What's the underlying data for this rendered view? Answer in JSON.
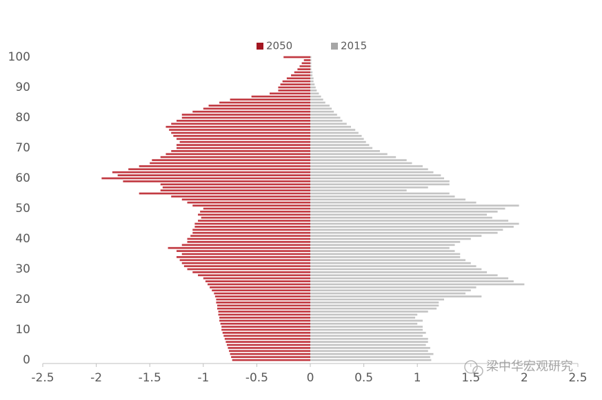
{
  "chart_data": {
    "type": "pyramid",
    "categories": [
      0,
      1,
      2,
      3,
      4,
      5,
      6,
      7,
      8,
      9,
      10,
      11,
      12,
      13,
      14,
      15,
      16,
      17,
      18,
      19,
      20,
      21,
      22,
      23,
      24,
      25,
      26,
      27,
      28,
      29,
      30,
      31,
      32,
      33,
      34,
      35,
      36,
      37,
      38,
      39,
      40,
      41,
      42,
      43,
      44,
      45,
      46,
      47,
      48,
      49,
      50,
      51,
      52,
      53,
      54,
      55,
      56,
      57,
      58,
      59,
      60,
      61,
      62,
      63,
      64,
      65,
      66,
      67,
      68,
      69,
      70,
      71,
      72,
      73,
      74,
      75,
      76,
      77,
      78,
      79,
      80,
      81,
      82,
      83,
      84,
      85,
      86,
      87,
      88,
      89,
      90,
      91,
      92,
      93,
      94,
      95,
      96,
      97,
      98,
      99,
      100
    ],
    "series": [
      {
        "name": "2050",
        "color": "#c23a42",
        "legend_color": "#a31621",
        "values": [
          -0.73,
          -0.74,
          -0.75,
          -0.76,
          -0.77,
          -0.78,
          -0.79,
          -0.8,
          -0.81,
          -0.82,
          -0.83,
          -0.83,
          -0.84,
          -0.85,
          -0.85,
          -0.86,
          -0.86,
          -0.87,
          -0.87,
          -0.88,
          -0.88,
          -0.89,
          -0.9,
          -0.92,
          -0.94,
          -0.96,
          -0.98,
          -1.0,
          -1.05,
          -1.1,
          -1.15,
          -1.18,
          -1.2,
          -1.22,
          -1.25,
          -1.2,
          -1.25,
          -1.33,
          -1.2,
          -1.15,
          -1.15,
          -1.12,
          -1.1,
          -1.1,
          -1.08,
          -1.08,
          -1.05,
          -1.02,
          -1.05,
          -1.03,
          -1.0,
          -1.1,
          -1.15,
          -1.2,
          -1.3,
          -1.6,
          -1.4,
          -1.38,
          -1.4,
          -1.75,
          -1.95,
          -1.8,
          -1.85,
          -1.7,
          -1.6,
          -1.5,
          -1.48,
          -1.4,
          -1.35,
          -1.3,
          -1.25,
          -1.25,
          -1.22,
          -1.25,
          -1.28,
          -1.3,
          -1.32,
          -1.35,
          -1.3,
          -1.25,
          -1.2,
          -1.2,
          -1.1,
          -1.0,
          -0.95,
          -0.85,
          -0.75,
          -0.55,
          -0.38,
          -0.3,
          -0.3,
          -0.28,
          -0.26,
          -0.22,
          -0.18,
          -0.15,
          -0.12,
          -0.1,
          -0.08,
          -0.06,
          -0.25
        ]
      },
      {
        "name": "2015",
        "color": "#c4c4c4",
        "legend_color": "#a6a6a6",
        "values": [
          1.13,
          1.12,
          1.15,
          1.1,
          1.12,
          1.08,
          1.1,
          1.1,
          1.05,
          1.08,
          1.05,
          1.05,
          1.0,
          1.05,
          0.98,
          1.0,
          1.1,
          1.18,
          1.2,
          1.2,
          1.25,
          1.6,
          1.45,
          1.5,
          1.55,
          2.0,
          1.9,
          1.85,
          1.75,
          1.65,
          1.6,
          1.55,
          1.5,
          1.45,
          1.4,
          1.4,
          1.35,
          1.3,
          1.35,
          1.4,
          1.5,
          1.6,
          1.75,
          1.8,
          1.9,
          1.95,
          1.85,
          1.7,
          1.65,
          1.75,
          1.82,
          1.95,
          1.55,
          1.45,
          1.35,
          1.3,
          0.9,
          1.1,
          1.3,
          1.3,
          1.25,
          1.22,
          1.15,
          1.1,
          1.05,
          0.95,
          0.9,
          0.8,
          0.72,
          0.65,
          0.58,
          0.55,
          0.52,
          0.5,
          0.48,
          0.45,
          0.42,
          0.38,
          0.34,
          0.3,
          0.28,
          0.25,
          0.22,
          0.2,
          0.18,
          0.14,
          0.12,
          0.1,
          0.08,
          0.06,
          0.05,
          0.04,
          0.03,
          0.03,
          0.02,
          0.02,
          0.01,
          0.01,
          0.01,
          0.01,
          0.01
        ]
      }
    ],
    "xlim": [
      -2.5,
      2.5
    ],
    "xticks": [
      -2.5,
      -2,
      -1.5,
      -1,
      -0.5,
      0,
      0.5,
      1,
      1.5,
      2,
      2.5
    ],
    "ylim": [
      0,
      100
    ],
    "yticks": [
      0,
      10,
      20,
      30,
      40,
      50,
      60,
      70,
      80,
      90,
      100
    ],
    "legend": "top",
    "watermark": "梁中华宏观研究"
  }
}
